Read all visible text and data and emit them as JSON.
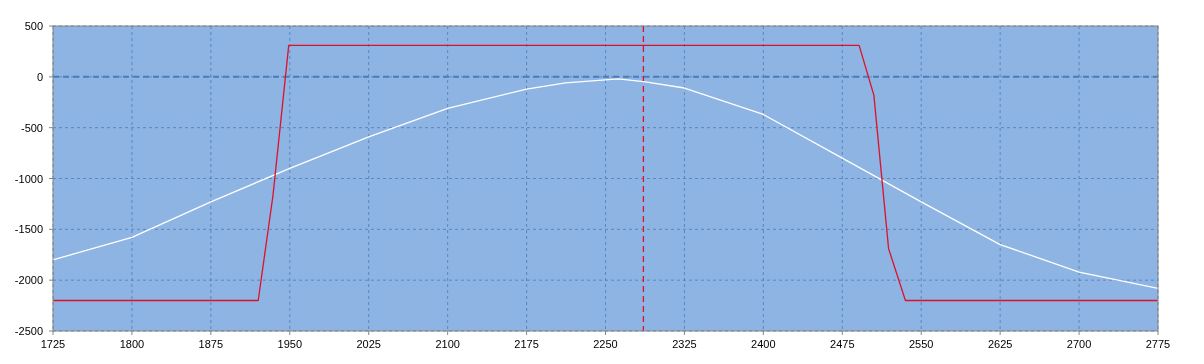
{
  "chart_data": {
    "type": "line",
    "xlim": [
      1725,
      2775
    ],
    "xticks": [
      1725,
      1800,
      1875,
      1950,
      2025,
      2100,
      2175,
      2250,
      2325,
      2400,
      2475,
      2550,
      2625,
      2700,
      2775
    ],
    "ylim": [
      -2500,
      500
    ],
    "yticks": [
      -2500,
      -2000,
      -1500,
      -1000,
      -500,
      0,
      500
    ],
    "grid": true,
    "marker": "none",
    "series": [
      {
        "color": "#ffffff",
        "x": [
          1725,
          1800,
          1875,
          1950,
          2025,
          2100,
          2175,
          2212,
          2250,
          2262,
          2288,
          2325,
          2400,
          2475,
          2550,
          2625,
          2700,
          2775
        ],
        "values": [
          -1800,
          -1580,
          -1230,
          -900,
          -590,
          -310,
          -120,
          -60,
          -30,
          -20,
          -50,
          -110,
          -370,
          -800,
          -1230,
          -1650,
          -1920,
          -2080
        ]
      },
      {
        "color": "#e0102a",
        "x": [
          1725,
          1920,
          1934,
          1949,
          2491,
          2505,
          2519,
          2535,
          2775
        ],
        "values": [
          -2200,
          -2200,
          -1170,
          310,
          310,
          -180,
          -1690,
          -2200,
          -2200
        ]
      }
    ],
    "ref_lines": [
      {
        "axis": "y",
        "value": 0,
        "color": "#4a7ebb",
        "line_style": "dashed"
      },
      {
        "axis": "x",
        "value": 2286,
        "color": "#e0102a",
        "line_style": "dashed"
      }
    ]
  }
}
